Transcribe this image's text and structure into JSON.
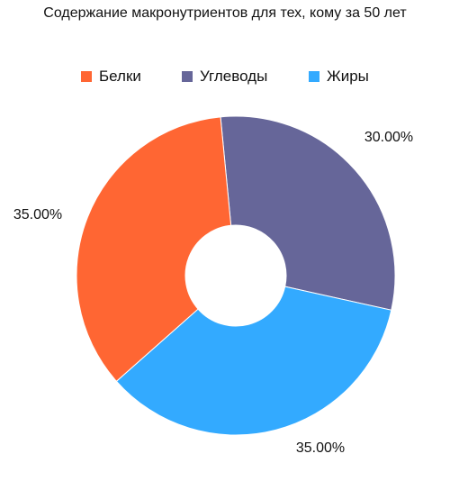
{
  "chart_data": {
    "type": "pie",
    "title": "Содержание макронутриентов для тех, кому за 50 лет",
    "donut": true,
    "legend_position": "top",
    "categories": [
      "Белки",
      "Углеводы",
      "Жиры"
    ],
    "values": [
      35.0,
      30.0,
      35.0
    ],
    "labels": [
      "35.00%",
      "30.00%",
      "35.00%"
    ],
    "colors": [
      "#FF6633",
      "#666699",
      "#33AAFF"
    ]
  }
}
